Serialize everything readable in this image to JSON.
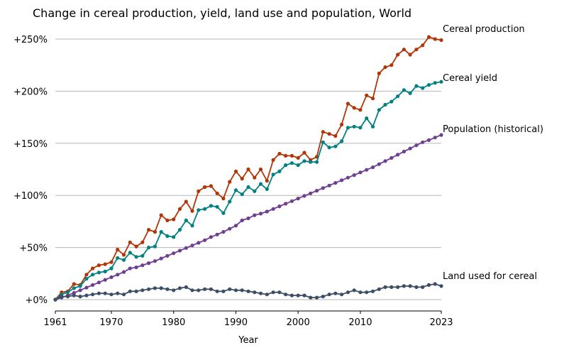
{
  "chart_data": {
    "type": "line",
    "title": "Change in cereal production, yield, land use and population, World",
    "xlabel": "Year",
    "ylabel": "",
    "xlim": [
      1961,
      2023
    ],
    "ylim": [
      -5,
      255
    ],
    "x_ticks": [
      1961,
      1970,
      1980,
      1990,
      2000,
      2010,
      2023
    ],
    "y_ticks": [
      0,
      50,
      100,
      150,
      200,
      250
    ],
    "y_tick_labels": [
      "+0%",
      "+50%",
      "+100%",
      "+150%",
      "+200%",
      "+250%"
    ],
    "grid": "horizontal",
    "legend": "labels at line ends",
    "x": [
      1961,
      1962,
      1963,
      1964,
      1965,
      1966,
      1967,
      1968,
      1969,
      1970,
      1971,
      1972,
      1973,
      1974,
      1975,
      1976,
      1977,
      1978,
      1979,
      1980,
      1981,
      1982,
      1983,
      1984,
      1985,
      1986,
      1987,
      1988,
      1989,
      1990,
      1991,
      1992,
      1993,
      1994,
      1995,
      1996,
      1997,
      1998,
      1999,
      2000,
      2001,
      2002,
      2003,
      2004,
      2005,
      2006,
      2007,
      2008,
      2009,
      2010,
      2011,
      2012,
      2013,
      2014,
      2015,
      2016,
      2017,
      2018,
      2019,
      2020,
      2021,
      2022,
      2023
    ],
    "series": [
      {
        "name": "Cereal production",
        "color": "#b13507",
        "values": [
          0,
          7,
          8,
          15,
          14,
          24,
          30,
          33,
          34,
          36,
          48,
          43,
          55,
          51,
          55,
          67,
          65,
          81,
          76,
          77,
          87,
          94,
          85,
          104,
          108,
          109,
          102,
          97,
          113,
          123,
          116,
          125,
          117,
          125,
          114,
          134,
          140,
          138,
          138,
          136,
          141,
          134,
          137,
          161,
          159,
          157,
          168,
          188,
          184,
          182,
          196,
          193,
          217,
          223,
          225,
          235,
          240,
          235,
          240,
          244,
          252,
          250,
          249
        ]
      },
      {
        "name": "Cereal yield",
        "color": "#038080",
        "values": [
          0,
          5,
          7,
          11,
          13,
          20,
          24,
          26,
          27,
          30,
          40,
          38,
          45,
          41,
          42,
          50,
          51,
          65,
          61,
          60,
          67,
          76,
          71,
          86,
          87,
          90,
          89,
          83,
          94,
          105,
          101,
          108,
          104,
          111,
          106,
          120,
          123,
          129,
          131,
          129,
          133,
          132,
          132,
          151,
          146,
          147,
          152,
          165,
          166,
          165,
          174,
          166,
          182,
          187,
          190,
          195,
          201,
          198,
          205,
          203,
          206,
          208,
          209
        ]
      },
      {
        "name": "Population (historical)",
        "color": "#6d3e91",
        "values": [
          0,
          2,
          4,
          6.5,
          9,
          11.5,
          14,
          16.5,
          19,
          21.5,
          24,
          26.5,
          30,
          31,
          33,
          35,
          37,
          39.5,
          42,
          44.5,
          47,
          49.5,
          52,
          54.5,
          57,
          60,
          62.5,
          65,
          68,
          71,
          76,
          78,
          81,
          82.5,
          84.5,
          87,
          89.5,
          92,
          94.5,
          97,
          99.5,
          102,
          104.5,
          107,
          109.5,
          112,
          114.5,
          117,
          119.5,
          122,
          124.5,
          127,
          130,
          133,
          136,
          139,
          142,
          145,
          148,
          151,
          153,
          155.5,
          158
        ]
      },
      {
        "name": "Land used for cereal",
        "color": "#3c4e66",
        "values": [
          0,
          3,
          3,
          4,
          3,
          4,
          5,
          6,
          6,
          5,
          6,
          5,
          8,
          8,
          9,
          10,
          11,
          11,
          10,
          9,
          11,
          12,
          9,
          9,
          10,
          10,
          8,
          8,
          10,
          9,
          9,
          8,
          7,
          6,
          5,
          7,
          7,
          5,
          4,
          4,
          4,
          2,
          2,
          3,
          5,
          6,
          5,
          7,
          9,
          7,
          7,
          8,
          10,
          12,
          12,
          12,
          13,
          13,
          12,
          12,
          14,
          15,
          13
        ]
      }
    ]
  }
}
